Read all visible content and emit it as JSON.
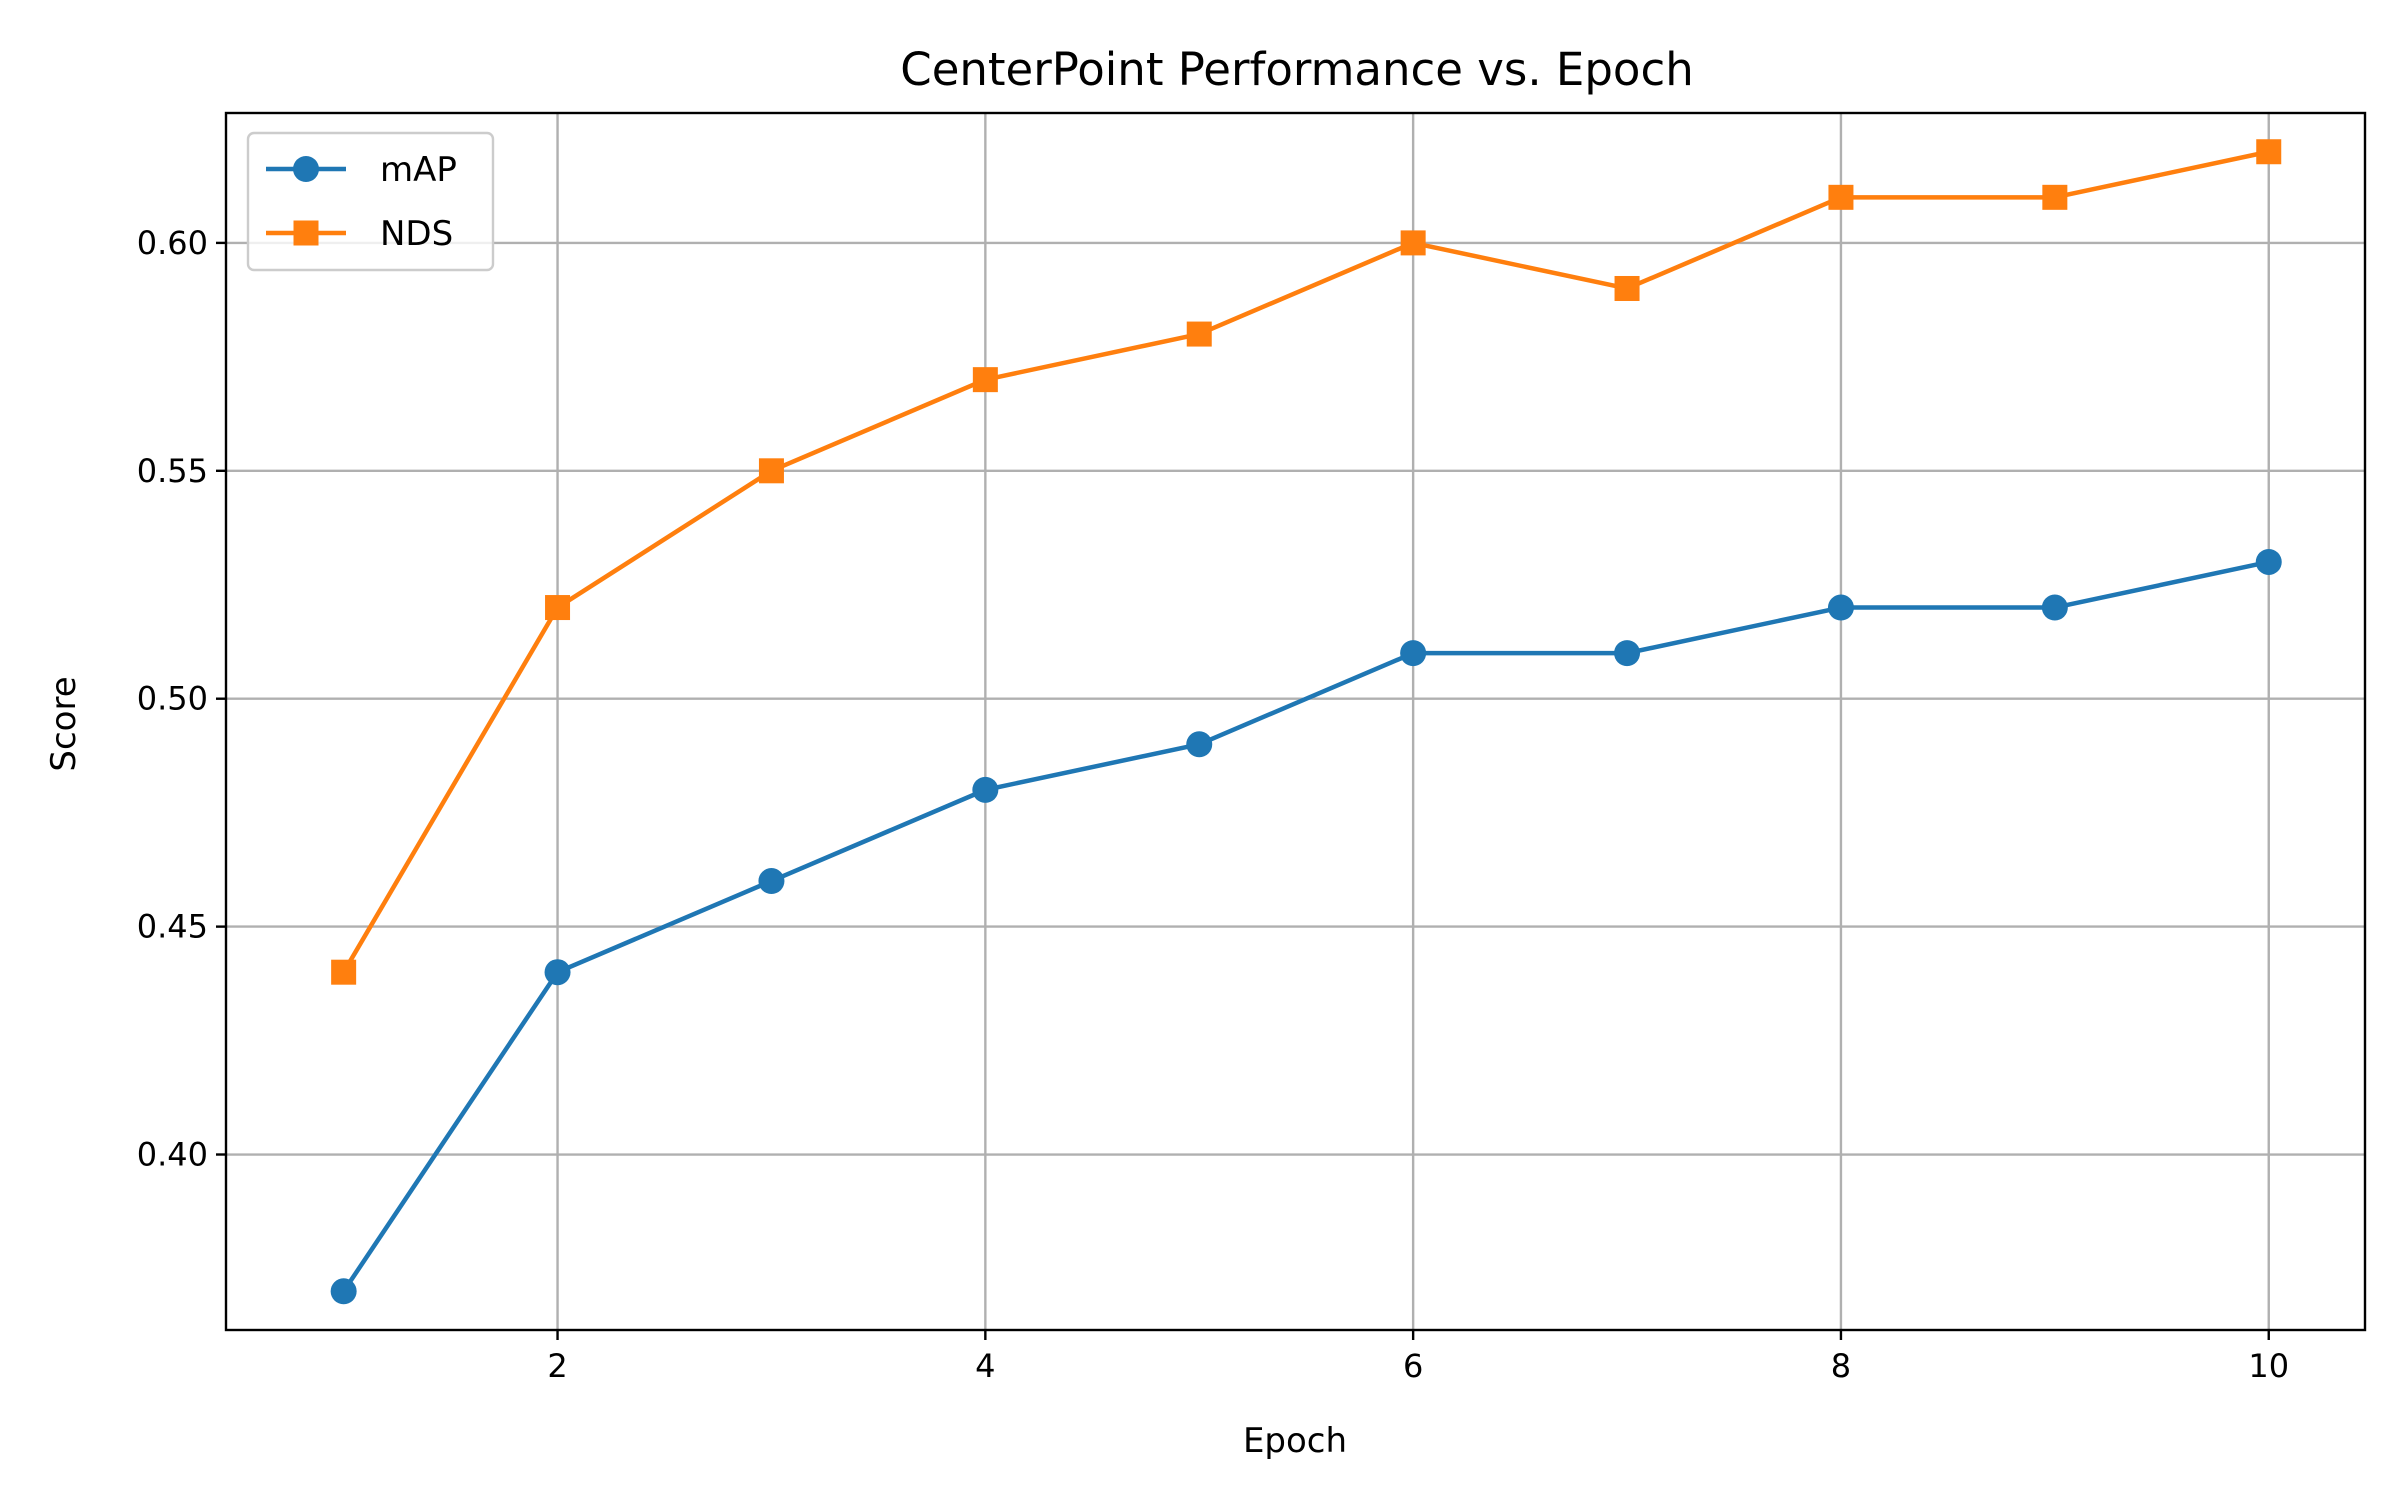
{
  "chart_data": {
    "type": "line",
    "title": "CenterPoint Performance vs. Epoch",
    "xlabel": "Epoch",
    "ylabel": "Score",
    "x": [
      1,
      2,
      3,
      4,
      5,
      6,
      7,
      8,
      9,
      10
    ],
    "xticks": [
      2,
      4,
      6,
      8,
      10
    ],
    "xtick_labels": [
      "2",
      "4",
      "6",
      "8",
      "10"
    ],
    "yticks": [
      0.4,
      0.45,
      0.5,
      0.55,
      0.6
    ],
    "ytick_labels": [
      "0.40",
      "0.45",
      "0.50",
      "0.55",
      "0.60"
    ],
    "xlim": [
      0.45,
      10.45
    ],
    "ylim": [
      0.3615,
      0.6285
    ],
    "grid": true,
    "legend_position": "top-left",
    "series": [
      {
        "name": "mAP",
        "color": "#1f77b4",
        "marker": "circle",
        "values": [
          0.37,
          0.44,
          0.46,
          0.48,
          0.49,
          0.51,
          0.51,
          0.52,
          0.52,
          0.53
        ]
      },
      {
        "name": "NDS",
        "color": "#ff7f0e",
        "marker": "square",
        "values": [
          0.44,
          0.52,
          0.55,
          0.57,
          0.58,
          0.6,
          0.59,
          0.61,
          0.61,
          0.62
        ]
      }
    ]
  }
}
